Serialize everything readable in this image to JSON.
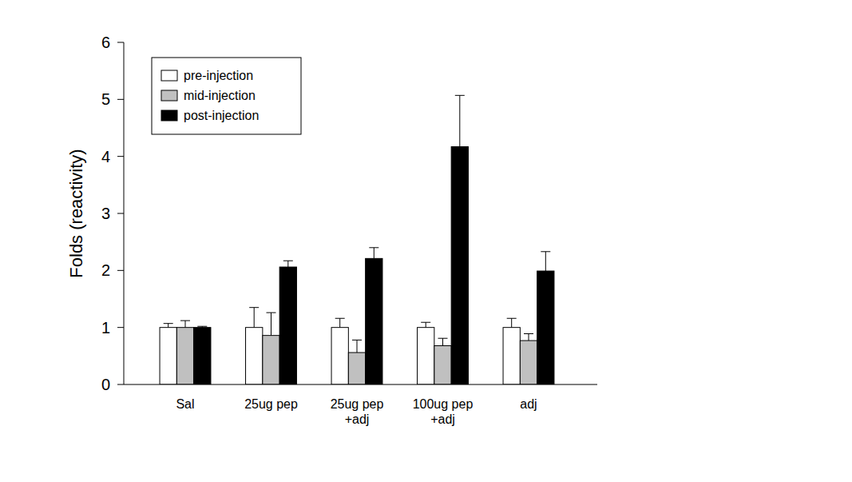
{
  "chart_data": {
    "type": "bar",
    "y_label": "Folds (reactivity)",
    "categories": [
      "Sal",
      "25ug pep",
      "25ug pep\n+adj",
      "100ug pep\n+adj",
      "adj"
    ],
    "series": [
      {
        "name": "pre-injection",
        "color": "#ffffff",
        "values": [
          1.0,
          1.0,
          1.0,
          1.0,
          1.0
        ],
        "errors": [
          0.07,
          0.35,
          0.16,
          0.09,
          0.16
        ]
      },
      {
        "name": "mid-injection",
        "color": "#c0c0c0",
        "values": [
          1.0,
          0.86,
          0.56,
          0.68,
          0.77
        ],
        "errors": [
          0.12,
          0.4,
          0.22,
          0.13,
          0.12
        ]
      },
      {
        "name": "post-injection",
        "color": "#000000",
        "values": [
          1.0,
          2.06,
          2.21,
          4.17,
          1.99
        ],
        "errors": [
          0.02,
          0.11,
          0.19,
          0.9,
          0.34
        ]
      }
    ],
    "ylim": [
      0,
      6
    ],
    "yticks": [
      0,
      1,
      2,
      3,
      4,
      5,
      6
    ],
    "grid": false,
    "legend": "upper left"
  }
}
